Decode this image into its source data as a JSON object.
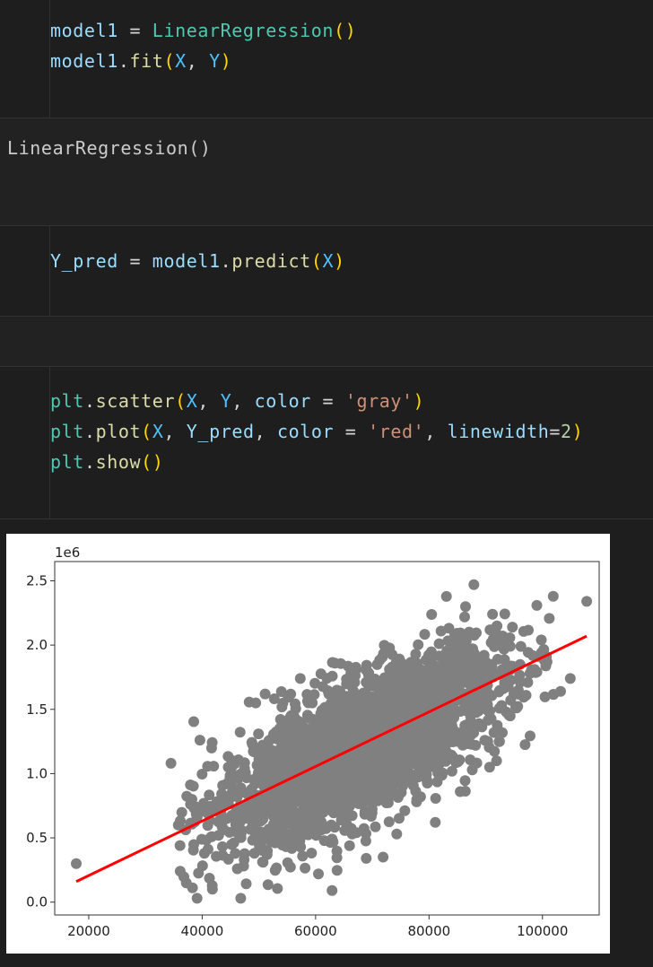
{
  "cells": [
    {
      "lines": [
        [
          {
            "t": "model1",
            "c": "v"
          },
          {
            "t": " = ",
            "c": "p"
          },
          {
            "t": "LinearRegression",
            "c": "c"
          },
          {
            "t": "()",
            "c": "b"
          }
        ],
        [
          {
            "t": "model1",
            "c": "v"
          },
          {
            "t": ".",
            "c": "p"
          },
          {
            "t": "fit",
            "c": "f"
          },
          {
            "t": "(",
            "c": "b"
          },
          {
            "t": "X",
            "c": "x"
          },
          {
            "t": ", ",
            "c": "p"
          },
          {
            "t": "Y",
            "c": "x"
          },
          {
            "t": ")",
            "c": "b"
          }
        ]
      ]
    },
    {
      "output": "LinearRegression()"
    },
    {
      "lines": [
        [
          {
            "t": "Y_pred",
            "c": "v"
          },
          {
            "t": " = ",
            "c": "p"
          },
          {
            "t": "model1",
            "c": "v"
          },
          {
            "t": ".",
            "c": "p"
          },
          {
            "t": "predict",
            "c": "f"
          },
          {
            "t": "(",
            "c": "b"
          },
          {
            "t": "X",
            "c": "x"
          },
          {
            "t": ")",
            "c": "b"
          }
        ]
      ]
    },
    {
      "lines": [
        [
          {
            "t": "plt",
            "c": "c"
          },
          {
            "t": ".",
            "c": "p"
          },
          {
            "t": "scatter",
            "c": "f"
          },
          {
            "t": "(",
            "c": "b"
          },
          {
            "t": "X",
            "c": "x"
          },
          {
            "t": ", ",
            "c": "p"
          },
          {
            "t": "Y",
            "c": "x"
          },
          {
            "t": ", ",
            "c": "p"
          },
          {
            "t": "color",
            "c": "v"
          },
          {
            "t": " = ",
            "c": "p"
          },
          {
            "t": "'gray'",
            "c": "s"
          },
          {
            "t": ")",
            "c": "b"
          }
        ],
        [
          {
            "t": "plt",
            "c": "c"
          },
          {
            "t": ".",
            "c": "p"
          },
          {
            "t": "plot",
            "c": "f"
          },
          {
            "t": "(",
            "c": "b"
          },
          {
            "t": "X",
            "c": "x"
          },
          {
            "t": ", ",
            "c": "p"
          },
          {
            "t": "Y_pred",
            "c": "v"
          },
          {
            "t": ", ",
            "c": "p"
          },
          {
            "t": "color",
            "c": "v"
          },
          {
            "t": " = ",
            "c": "p"
          },
          {
            "t": "'red'",
            "c": "s"
          },
          {
            "t": ", ",
            "c": "p"
          },
          {
            "t": "linewidth",
            "c": "v"
          },
          {
            "t": "=",
            "c": "p"
          },
          {
            "t": "2",
            "c": "n"
          },
          {
            "t": ")",
            "c": "b"
          }
        ],
        [
          {
            "t": "plt",
            "c": "c"
          },
          {
            "t": ".",
            "c": "p"
          },
          {
            "t": "show",
            "c": "f"
          },
          {
            "t": "()",
            "c": "b"
          }
        ]
      ]
    }
  ],
  "chart_data": {
    "type": "scatter",
    "offset_text": "1e6",
    "xlim": [
      14000,
      110000
    ],
    "ylim": [
      -0.1,
      2.65
    ],
    "xticks": [
      20000,
      40000,
      60000,
      80000,
      100000
    ],
    "xtick_labels": [
      "20000",
      "40000",
      "60000",
      "80000",
      "100000"
    ],
    "yticks": [
      0.0,
      0.5,
      1.0,
      1.5,
      2.0,
      2.5
    ],
    "ytick_labels": [
      "0.0",
      "0.5",
      "1.0",
      "1.5",
      "2.0",
      "2.5"
    ],
    "point_color": "#808080",
    "line_color": "#ff0000",
    "regression_line": {
      "x": [
        17800,
        107800
      ],
      "y": [
        0.16,
        2.07
      ]
    },
    "series": [
      {
        "kind": "points",
        "x": [
          17800,
          34500,
          35800,
          36100,
          37200,
          38600,
          39100,
          39600,
          40400,
          41800,
          42900,
          45200,
          46800,
          49700,
          51100,
          57300,
          62900,
          87900,
          91900,
          97800,
          99800,
          101900,
          103200,
          104900,
          107800,
          96200,
          98600,
          94700,
          85500,
          81100,
          77800,
          71900,
          69100,
          65300,
          55800,
          53500,
          47400,
          43800,
          60500,
          74300,
          63400,
          59400,
          92800,
          88200,
          79300,
          66700,
          52700,
          48600,
          44600,
          56700,
          54300,
          70400,
          75900,
          84400,
          89800,
          93600,
          67900,
          61700,
          58400,
          83300,
          72700,
          64600,
          57900,
          76600,
          86200,
          50200,
          46200
        ],
        "y": [
          0.3,
          1.08,
          0.6,
          0.44,
          0.15,
          0.73,
          0.03,
          1.26,
          0.38,
          0.1,
          0.52,
          1.08,
          0.03,
          0.83,
          1.62,
          1.74,
          0.09,
          2.47,
          1.1,
          1.78,
          2.04,
          2.38,
          1.64,
          1.74,
          2.34,
          1.99,
          1.81,
          2.14,
          0.86,
          0.62,
          0.78,
          0.35,
          0.69,
          0.84,
          0.53,
          0.48,
          0.33,
          0.64,
          0.22,
          0.53,
          1.86,
          1.55,
          1.53,
          1.22,
          1.13,
          0.95,
          0.98,
          0.69,
          1.05,
          1.27,
          1.35,
          1.5,
          1.7,
          1.75,
          1.88,
          1.48,
          1.38,
          1.22,
          1.17,
          1.24,
          1.45,
          1.04,
          0.84,
          0.95,
          1.62,
          0.72,
          0.82
        ]
      }
    ],
    "cloud": {
      "center_x": 68000,
      "center_y": 1.2,
      "count": 2600,
      "sd_x": 12500,
      "slope": 2.12e-05,
      "sd_y_resid": 0.26
    }
  }
}
